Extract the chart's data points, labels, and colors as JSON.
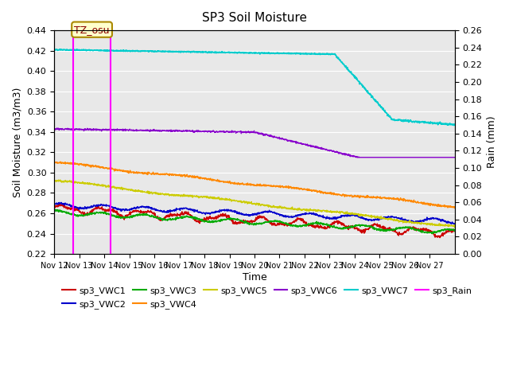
{
  "title": "SP3 Soil Moisture",
  "xlabel": "Time",
  "ylabel_left": "Soil Moisture (m3/m3)",
  "ylabel_right": "Rain (mm)",
  "xlim": [
    0,
    16
  ],
  "ylim_left": [
    0.22,
    0.44
  ],
  "ylim_right": [
    0.0,
    0.26
  ],
  "x_tick_labels": [
    "Nov 12",
    "Nov 13",
    "Nov 14",
    "Nov 15",
    "Nov 16",
    "Nov 17",
    "Nov 18",
    "Nov 19",
    "Nov 20",
    "Nov 21",
    "Nov 22",
    "Nov 23",
    "Nov 24",
    "Nov 25",
    "Nov 26",
    "Nov 27"
  ],
  "vline1_x": 0.75,
  "vline2_x": 2.25,
  "tz_label": "TZ_osu",
  "bg_color": "#e8e8e8",
  "colors": {
    "sp3_VWC1": "#cc0000",
    "sp3_VWC2": "#0000cc",
    "sp3_VWC3": "#00aa00",
    "sp3_VWC4": "#ff8800",
    "sp3_VWC5": "#cccc00",
    "sp3_VWC6": "#8800cc",
    "sp3_VWC7": "#00cccc",
    "sp3_Rain": "#ff00ff"
  },
  "legend_labels": [
    "sp3_VWC1",
    "sp3_VWC2",
    "sp3_VWC3",
    "sp3_VWC4",
    "sp3_VWC5",
    "sp3_VWC6",
    "sp3_VWC7",
    "sp3_Rain"
  ]
}
